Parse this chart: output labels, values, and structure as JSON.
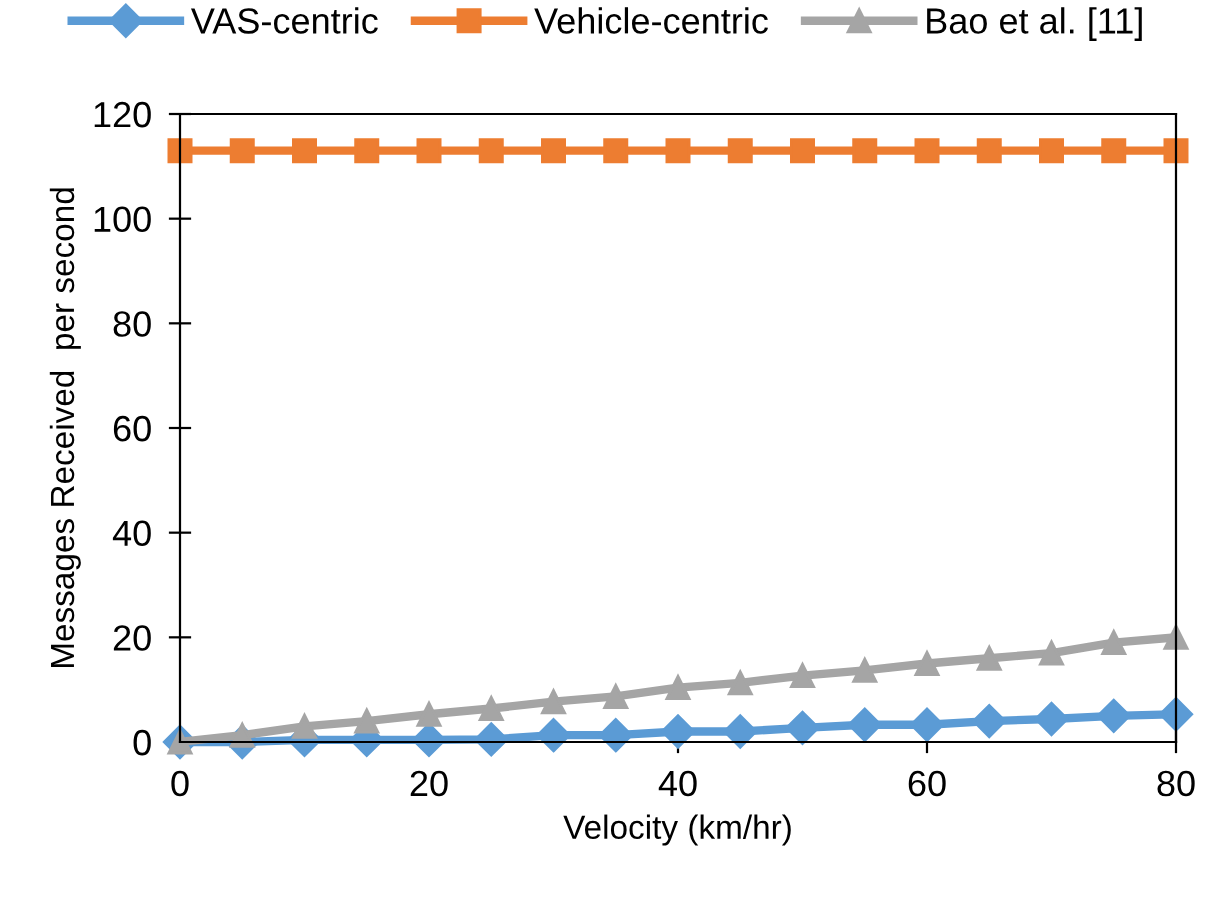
{
  "chart_data": {
    "type": "line",
    "xlabel": "Velocity (km/hr)",
    "ylabel": "Messages Received  per second",
    "x": [
      0,
      5,
      10,
      15,
      20,
      25,
      30,
      35,
      40,
      45,
      50,
      55,
      60,
      65,
      70,
      75,
      80
    ],
    "series": [
      {
        "name": "VAS-centric",
        "color": "#5b9bd5",
        "marker": "diamond",
        "values": [
          0,
          0,
          0.4,
          0.4,
          0.4,
          0.5,
          1.3,
          1.3,
          2,
          2,
          2.7,
          3.3,
          3.3,
          4,
          4.4,
          5,
          5.3
        ]
      },
      {
        "name": "Vehicle-centric",
        "color": "#ed7d31",
        "marker": "square",
        "values": [
          113,
          113,
          113,
          113,
          113,
          113,
          113,
          113,
          113,
          113,
          113,
          113,
          113,
          113,
          113,
          113,
          113
        ]
      },
      {
        "name": "Bao et al. [11]",
        "color": "#a5a5a5",
        "marker": "triangle",
        "values": [
          0,
          1.3,
          3,
          4,
          5.3,
          6.4,
          7.7,
          8.7,
          10.4,
          11.3,
          12.7,
          13.7,
          15,
          16,
          17,
          19,
          20
        ]
      }
    ],
    "xlim": [
      0,
      80
    ],
    "xticks": [
      0,
      20,
      40,
      60,
      80
    ],
    "ylim": [
      0,
      120
    ],
    "yticks": [
      0,
      20,
      40,
      60,
      80,
      100,
      120
    ],
    "grid": false,
    "legend": "top",
    "line_style": "solid"
  }
}
